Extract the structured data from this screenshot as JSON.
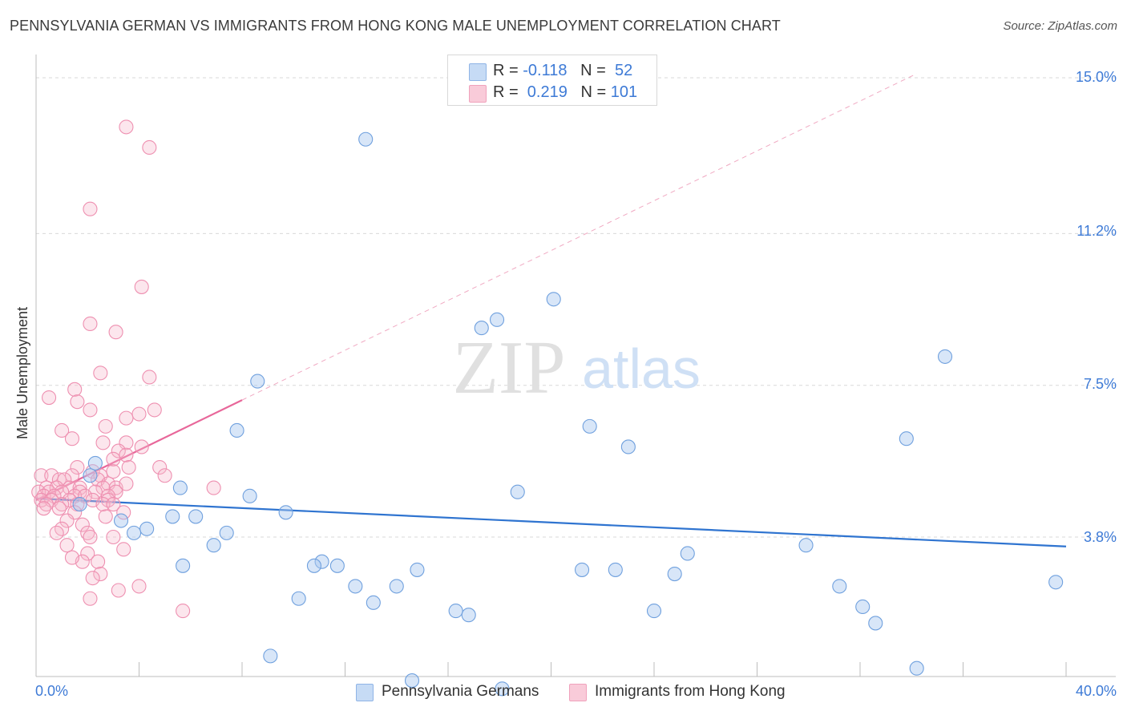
{
  "title": "PENNSYLVANIA GERMAN VS IMMIGRANTS FROM HONG KONG MALE UNEMPLOYMENT CORRELATION CHART",
  "source": "Source: ZipAtlas.com",
  "watermark": {
    "zip": "ZIP",
    "atlas": "atlas"
  },
  "legend": {
    "blue": {
      "r_label": "R = ",
      "r_value": "-0.118",
      "n_label": "N = ",
      "n_value": "52"
    },
    "pink": {
      "r_label": "R = ",
      "r_value": " 0.219",
      "n_label": "N = ",
      "n_value": "101"
    }
  },
  "colors": {
    "blue": "#a8c8ef",
    "blue_line": "#2f74d0",
    "pink": "#f6b6ca",
    "pink_line": "#e8679a",
    "axis_text": "#3d7ad6"
  },
  "chart_data": {
    "type": "scatter",
    "title": "PENNSYLVANIA GERMAN VS IMMIGRANTS FROM HONG KONG MALE UNEMPLOYMENT CORRELATION CHART",
    "xlabel": "",
    "ylabel": "Male Unemployment",
    "xlim": [
      0,
      40
    ],
    "ylim": [
      0,
      15.5
    ],
    "x_tick_labels": [
      "0.0%",
      "40.0%"
    ],
    "y_ticks": [
      3.8,
      7.5,
      11.2,
      15.0
    ],
    "y_tick_labels": [
      "3.8%",
      "7.5%",
      "11.2%",
      "15.0%"
    ],
    "grid": true,
    "series": [
      {
        "name": "Pennsylvania Germans",
        "color": "#a8c8ef",
        "points": [
          [
            12.8,
            13.5
          ],
          [
            20.1,
            9.6
          ],
          [
            17.9,
            9.1
          ],
          [
            17.3,
            8.9
          ],
          [
            35.3,
            8.2
          ],
          [
            8.6,
            7.6
          ],
          [
            21.5,
            6.5
          ],
          [
            23.0,
            6.0
          ],
          [
            33.8,
            6.2
          ],
          [
            7.8,
            6.4
          ],
          [
            2.3,
            5.6
          ],
          [
            2.1,
            5.3
          ],
          [
            5.6,
            5.0
          ],
          [
            18.7,
            4.9
          ],
          [
            8.3,
            4.8
          ],
          [
            1.7,
            4.6
          ],
          [
            9.7,
            4.4
          ],
          [
            5.3,
            4.3
          ],
          [
            6.2,
            4.3
          ],
          [
            3.3,
            4.2
          ],
          [
            4.3,
            4.0
          ],
          [
            3.8,
            3.9
          ],
          [
            7.4,
            3.9
          ],
          [
            6.9,
            3.6
          ],
          [
            29.9,
            3.6
          ],
          [
            25.3,
            3.4
          ],
          [
            5.7,
            3.1
          ],
          [
            11.1,
            3.2
          ],
          [
            10.8,
            3.1
          ],
          [
            11.7,
            3.1
          ],
          [
            14.8,
            3.0
          ],
          [
            21.2,
            3.0
          ],
          [
            22.5,
            3.0
          ],
          [
            24.8,
            2.9
          ],
          [
            12.4,
            2.6
          ],
          [
            14.0,
            2.6
          ],
          [
            31.2,
            2.6
          ],
          [
            39.6,
            2.7
          ],
          [
            10.2,
            2.3
          ],
          [
            13.1,
            2.2
          ],
          [
            32.1,
            2.1
          ],
          [
            16.3,
            2.0
          ],
          [
            16.8,
            1.9
          ],
          [
            24.0,
            2.0
          ],
          [
            32.6,
            1.7
          ],
          [
            9.1,
            0.9
          ],
          [
            14.6,
            0.3
          ],
          [
            34.2,
            0.6
          ],
          [
            18.1,
            0.1
          ]
        ],
        "trend": {
          "x": [
            0,
            40
          ],
          "y": [
            4.74,
            3.57
          ]
        }
      },
      {
        "name": "Immigrants from Hong Kong",
        "color": "#f6b6ca",
        "points": [
          [
            3.5,
            13.8
          ],
          [
            4.4,
            13.3
          ],
          [
            2.1,
            11.8
          ],
          [
            4.1,
            9.9
          ],
          [
            2.1,
            9.0
          ],
          [
            3.1,
            8.8
          ],
          [
            2.5,
            7.8
          ],
          [
            4.4,
            7.7
          ],
          [
            1.5,
            7.4
          ],
          [
            1.6,
            7.1
          ],
          [
            0.5,
            7.2
          ],
          [
            4.6,
            6.9
          ],
          [
            2.1,
            6.9
          ],
          [
            4.0,
            6.8
          ],
          [
            3.5,
            6.7
          ],
          [
            1.0,
            6.4
          ],
          [
            2.7,
            6.5
          ],
          [
            1.4,
            6.2
          ],
          [
            2.6,
            6.1
          ],
          [
            3.5,
            6.1
          ],
          [
            4.1,
            6.0
          ],
          [
            3.2,
            5.9
          ],
          [
            3.5,
            5.8
          ],
          [
            3.0,
            5.7
          ],
          [
            1.6,
            5.5
          ],
          [
            2.2,
            5.4
          ],
          [
            4.8,
            5.5
          ],
          [
            3.6,
            5.5
          ],
          [
            3.0,
            5.4
          ],
          [
            1.4,
            5.3
          ],
          [
            2.5,
            5.3
          ],
          [
            5.0,
            5.3
          ],
          [
            0.2,
            5.3
          ],
          [
            0.6,
            5.3
          ],
          [
            0.9,
            5.2
          ],
          [
            1.1,
            5.2
          ],
          [
            2.4,
            5.2
          ],
          [
            2.8,
            5.1
          ],
          [
            3.1,
            5.0
          ],
          [
            0.4,
            5.0
          ],
          [
            0.8,
            5.0
          ],
          [
            1.3,
            5.0
          ],
          [
            1.7,
            5.0
          ],
          [
            2.6,
            5.0
          ],
          [
            3.5,
            5.1
          ],
          [
            6.9,
            5.0
          ],
          [
            0.1,
            4.9
          ],
          [
            0.5,
            4.9
          ],
          [
            1.0,
            4.9
          ],
          [
            1.7,
            4.9
          ],
          [
            2.3,
            4.9
          ],
          [
            3.1,
            4.9
          ],
          [
            0.3,
            4.8
          ],
          [
            0.7,
            4.8
          ],
          [
            1.5,
            4.8
          ],
          [
            1.9,
            4.8
          ],
          [
            2.8,
            4.8
          ],
          [
            0.2,
            4.7
          ],
          [
            0.6,
            4.7
          ],
          [
            1.3,
            4.7
          ],
          [
            2.2,
            4.7
          ],
          [
            2.8,
            4.7
          ],
          [
            0.4,
            4.6
          ],
          [
            1.0,
            4.6
          ],
          [
            1.6,
            4.6
          ],
          [
            2.6,
            4.6
          ],
          [
            3.0,
            4.6
          ],
          [
            0.3,
            4.5
          ],
          [
            0.9,
            4.5
          ],
          [
            1.5,
            4.4
          ],
          [
            1.2,
            4.2
          ],
          [
            2.7,
            4.3
          ],
          [
            3.4,
            4.4
          ],
          [
            1.8,
            4.1
          ],
          [
            1.0,
            4.0
          ],
          [
            2.0,
            3.9
          ],
          [
            0.8,
            3.9
          ],
          [
            2.1,
            3.8
          ],
          [
            3.0,
            3.8
          ],
          [
            1.2,
            3.6
          ],
          [
            3.4,
            3.5
          ],
          [
            2.0,
            3.4
          ],
          [
            1.8,
            3.2
          ],
          [
            2.4,
            3.2
          ],
          [
            1.4,
            3.3
          ],
          [
            2.5,
            2.9
          ],
          [
            2.2,
            2.8
          ],
          [
            4.0,
            2.6
          ],
          [
            3.2,
            2.5
          ],
          [
            2.1,
            2.3
          ],
          [
            5.7,
            2.0
          ]
        ],
        "trend": {
          "x": [
            0,
            8
          ],
          "y": [
            4.7,
            7.14
          ]
        },
        "trend_extended": {
          "x": [
            8,
            34.2
          ],
          "y": [
            7.14,
            15.1
          ]
        }
      }
    ]
  },
  "bottom_legend": {
    "blue_label": "Pennsylvania Germans",
    "pink_label": "Immigrants from Hong Kong"
  }
}
